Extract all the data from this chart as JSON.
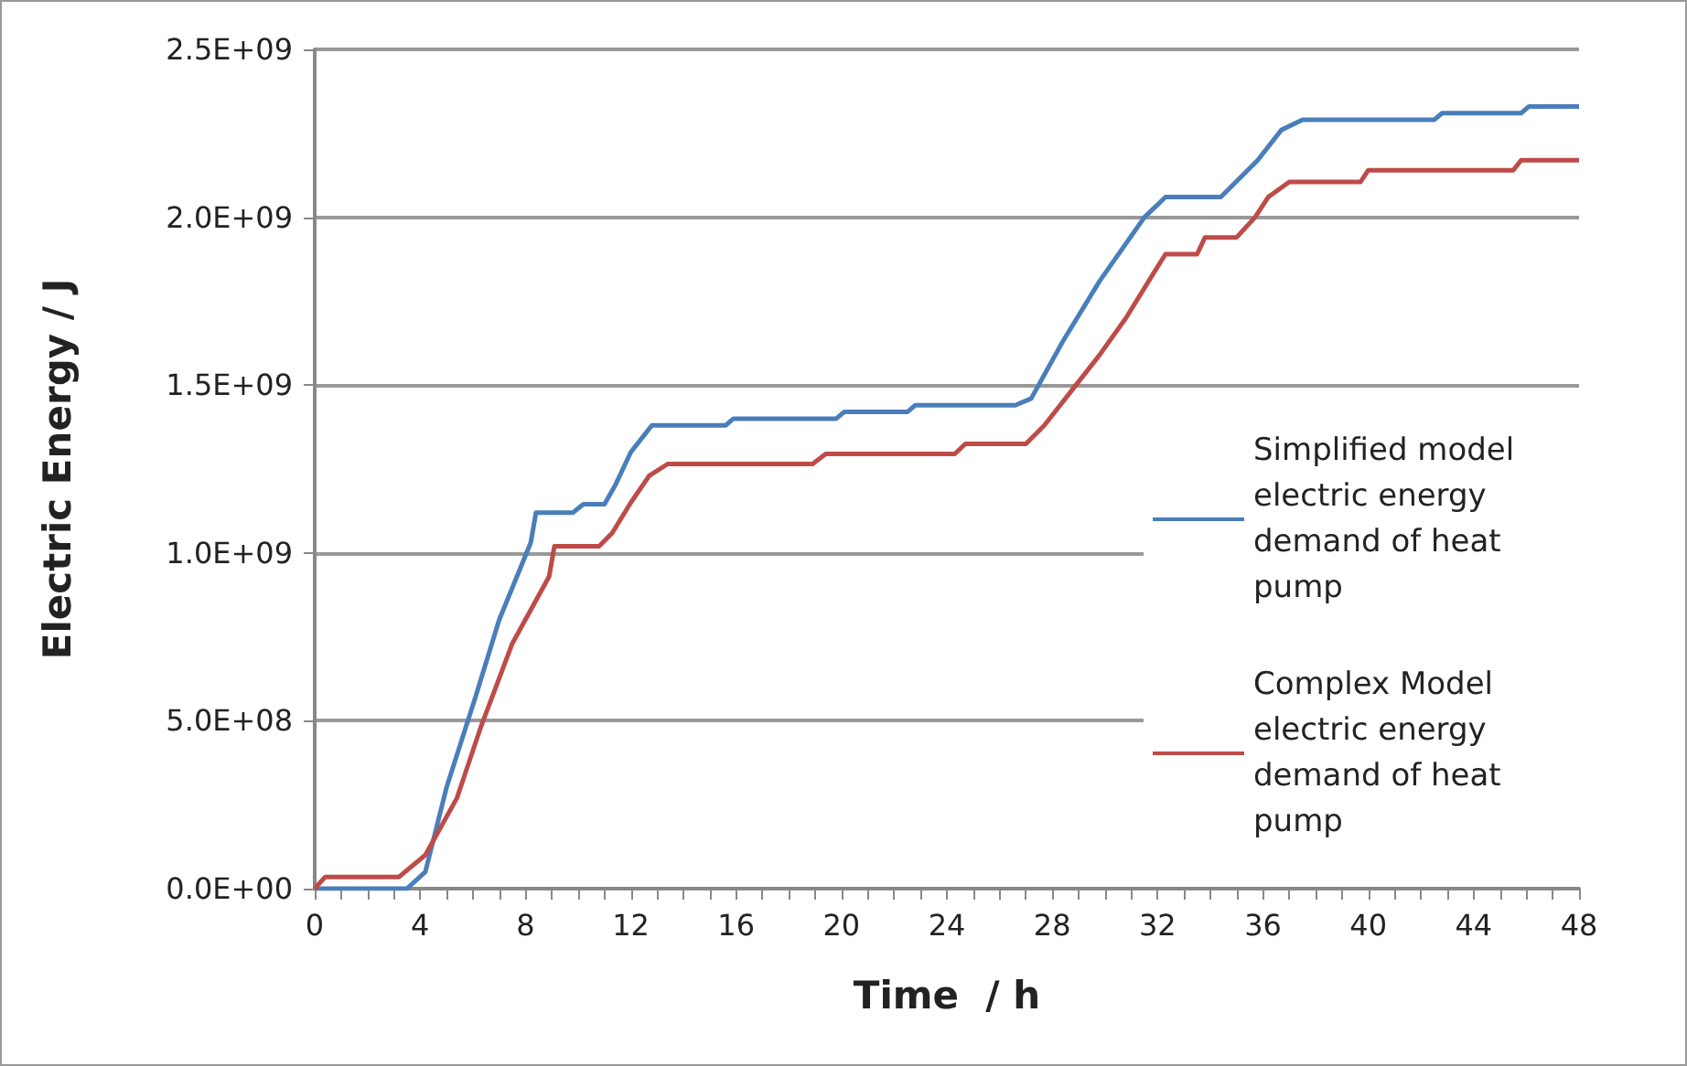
{
  "chart_data": {
    "type": "line",
    "xlabel": "Time  / h",
    "ylabel": "Electric Energy / J",
    "xlim": [
      0,
      48
    ],
    "xticks": [
      0,
      4,
      8,
      12,
      16,
      20,
      24,
      28,
      32,
      36,
      40,
      44,
      48
    ],
    "ylim": [
      0,
      2500000000
    ],
    "yticks": [
      {
        "value": 0,
        "label": "0.0E+00"
      },
      {
        "value": 500000000,
        "label": "5.0E+08"
      },
      {
        "value": 1000000000,
        "label": "1.0E+09"
      },
      {
        "value": 1500000000,
        "label": "1.5E+09"
      },
      {
        "value": 2000000000,
        "label": "2.0E+09"
      },
      {
        "value": 2500000000,
        "label": "2.5E+09"
      }
    ],
    "grid": "y",
    "legend": "right",
    "marker": "none",
    "line_style": "solid",
    "series": [
      {
        "name": "Simplified model electric energy demand of heat pump",
        "color": "#4a7ebb",
        "x": [
          0,
          3.5,
          4.2,
          5.0,
          6.1,
          7.0,
          8.2,
          8.4,
          9.8,
          10.2,
          11.0,
          11.4,
          12.0,
          12.8,
          15.6,
          15.9,
          19.8,
          20.1,
          22.5,
          22.8,
          26.6,
          27.2,
          28.4,
          29.8,
          31.5,
          32.3,
          34.4,
          35.8,
          36.7,
          37.5,
          42.5,
          42.8,
          45.8,
          46.1,
          48
        ],
        "values": [
          0,
          0,
          50000000,
          300000000,
          570000000,
          800000000,
          1030000000,
          1120000000,
          1120000000,
          1145000000,
          1145000000,
          1200000000,
          1300000000,
          1380000000,
          1380000000,
          1400000000,
          1400000000,
          1420000000,
          1420000000,
          1440000000,
          1440000000,
          1460000000,
          1630000000,
          1810000000,
          2000000000,
          2060000000,
          2060000000,
          2170000000,
          2260000000,
          2290000000,
          2290000000,
          2310000000,
          2310000000,
          2330000000,
          2330000000
        ]
      },
      {
        "name": "Complex Model electric energy demand of heat pump",
        "color": "#be4b48",
        "x": [
          0,
          0.4,
          3.2,
          4.2,
          5.4,
          6.3,
          7.5,
          8.9,
          9.1,
          10.8,
          11.3,
          12.0,
          12.7,
          13.4,
          18.9,
          19.4,
          24.3,
          24.7,
          27.0,
          27.7,
          29.1,
          29.8,
          30.8,
          31.9,
          32.3,
          33.5,
          33.8,
          35.0,
          35.7,
          36.2,
          37.0,
          39.7,
          40.0,
          45.5,
          45.8,
          48
        ],
        "values": [
          0,
          35000000,
          35000000,
          100000000,
          270000000,
          480000000,
          730000000,
          930000000,
          1020000000,
          1020000000,
          1060000000,
          1150000000,
          1230000000,
          1265000000,
          1265000000,
          1295000000,
          1295000000,
          1325000000,
          1325000000,
          1380000000,
          1520000000,
          1590000000,
          1700000000,
          1840000000,
          1890000000,
          1890000000,
          1940000000,
          1940000000,
          2000000000,
          2060000000,
          2105000000,
          2105000000,
          2140000000,
          2140000000,
          2170000000,
          2170000000
        ]
      }
    ]
  }
}
